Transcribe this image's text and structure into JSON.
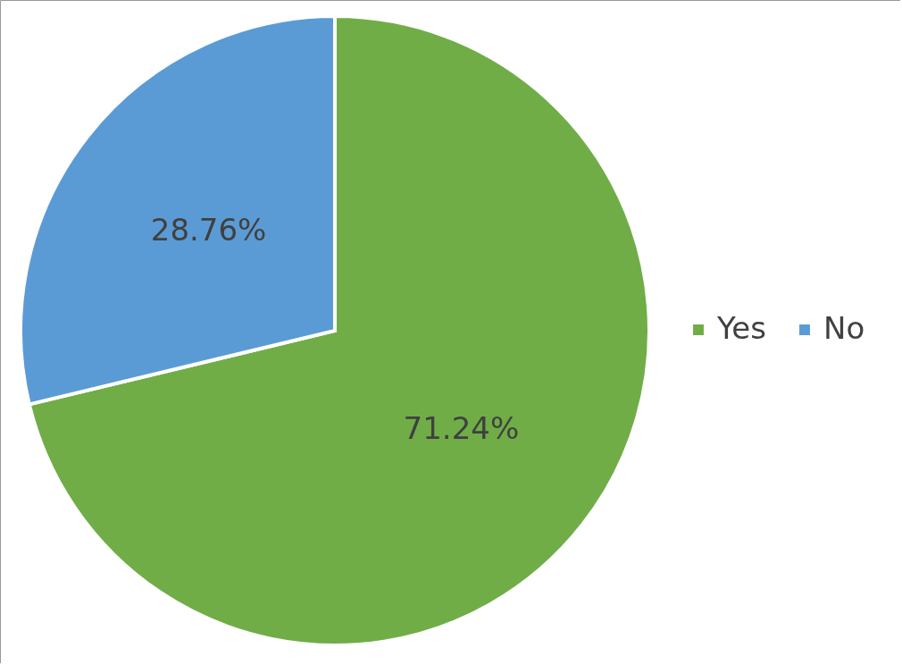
{
  "chart_data": {
    "type": "pie",
    "categories": [
      "Yes",
      "No"
    ],
    "values": [
      71.24,
      28.76
    ],
    "colors": [
      "#70ad47",
      "#5b9bd5"
    ],
    "value_labels": [
      "71.24%",
      "28.76%"
    ],
    "legend": "right"
  }
}
